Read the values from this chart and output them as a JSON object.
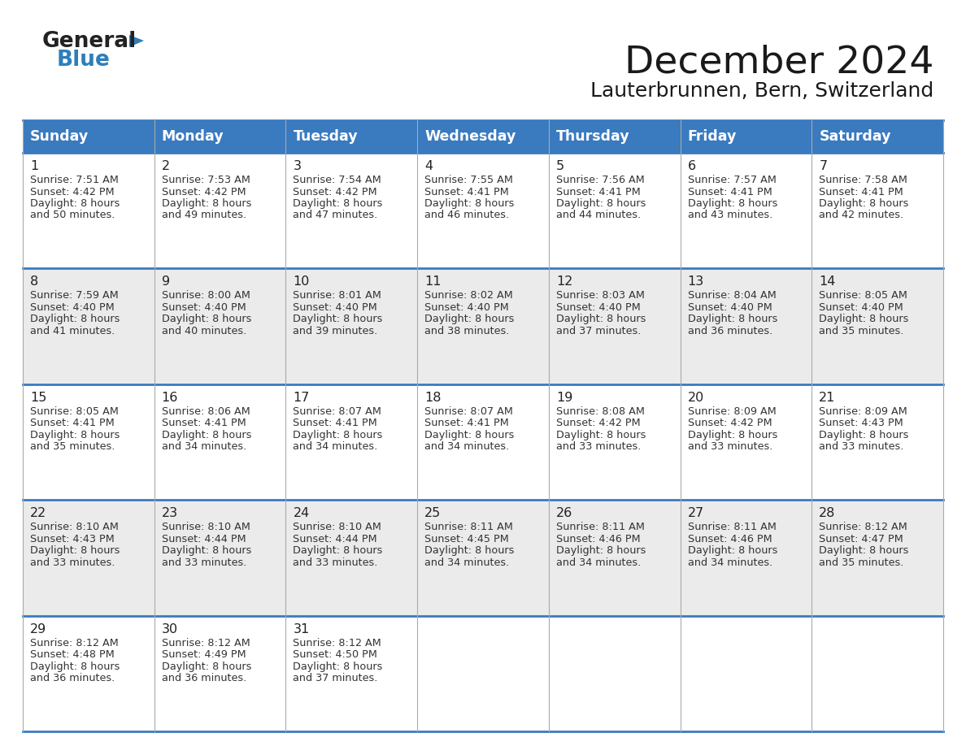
{
  "title": "December 2024",
  "subtitle": "Lauterbrunnen, Bern, Switzerland",
  "header_color": "#3a7abf",
  "header_text_color": "#ffffff",
  "cell_bg_white": "#ffffff",
  "cell_bg_gray": "#ebebeb",
  "border_color": "#3a7abf",
  "inner_line_color": "#cccccc",
  "day_names": [
    "Sunday",
    "Monday",
    "Tuesday",
    "Wednesday",
    "Thursday",
    "Friday",
    "Saturday"
  ],
  "calendar": [
    [
      {
        "day": "1",
        "sunrise": "7:51 AM",
        "sunset": "4:42 PM",
        "minutes": "50 minutes."
      },
      {
        "day": "2",
        "sunrise": "7:53 AM",
        "sunset": "4:42 PM",
        "minutes": "49 minutes."
      },
      {
        "day": "3",
        "sunrise": "7:54 AM",
        "sunset": "4:42 PM",
        "minutes": "47 minutes."
      },
      {
        "day": "4",
        "sunrise": "7:55 AM",
        "sunset": "4:41 PM",
        "minutes": "46 minutes."
      },
      {
        "day": "5",
        "sunrise": "7:56 AM",
        "sunset": "4:41 PM",
        "minutes": "44 minutes."
      },
      {
        "day": "6",
        "sunrise": "7:57 AM",
        "sunset": "4:41 PM",
        "minutes": "43 minutes."
      },
      {
        "day": "7",
        "sunrise": "7:58 AM",
        "sunset": "4:41 PM",
        "minutes": "42 minutes."
      }
    ],
    [
      {
        "day": "8",
        "sunrise": "7:59 AM",
        "sunset": "4:40 PM",
        "minutes": "41 minutes."
      },
      {
        "day": "9",
        "sunrise": "8:00 AM",
        "sunset": "4:40 PM",
        "minutes": "40 minutes."
      },
      {
        "day": "10",
        "sunrise": "8:01 AM",
        "sunset": "4:40 PM",
        "minutes": "39 minutes."
      },
      {
        "day": "11",
        "sunrise": "8:02 AM",
        "sunset": "4:40 PM",
        "minutes": "38 minutes."
      },
      {
        "day": "12",
        "sunrise": "8:03 AM",
        "sunset": "4:40 PM",
        "minutes": "37 minutes."
      },
      {
        "day": "13",
        "sunrise": "8:04 AM",
        "sunset": "4:40 PM",
        "minutes": "36 minutes."
      },
      {
        "day": "14",
        "sunrise": "8:05 AM",
        "sunset": "4:40 PM",
        "minutes": "35 minutes."
      }
    ],
    [
      {
        "day": "15",
        "sunrise": "8:05 AM",
        "sunset": "4:41 PM",
        "minutes": "35 minutes."
      },
      {
        "day": "16",
        "sunrise": "8:06 AM",
        "sunset": "4:41 PM",
        "minutes": "34 minutes."
      },
      {
        "day": "17",
        "sunrise": "8:07 AM",
        "sunset": "4:41 PM",
        "minutes": "34 minutes."
      },
      {
        "day": "18",
        "sunrise": "8:07 AM",
        "sunset": "4:41 PM",
        "minutes": "34 minutes."
      },
      {
        "day": "19",
        "sunrise": "8:08 AM",
        "sunset": "4:42 PM",
        "minutes": "33 minutes."
      },
      {
        "day": "20",
        "sunrise": "8:09 AM",
        "sunset": "4:42 PM",
        "minutes": "33 minutes."
      },
      {
        "day": "21",
        "sunrise": "8:09 AM",
        "sunset": "4:43 PM",
        "minutes": "33 minutes."
      }
    ],
    [
      {
        "day": "22",
        "sunrise": "8:10 AM",
        "sunset": "4:43 PM",
        "minutes": "33 minutes."
      },
      {
        "day": "23",
        "sunrise": "8:10 AM",
        "sunset": "4:44 PM",
        "minutes": "33 minutes."
      },
      {
        "day": "24",
        "sunrise": "8:10 AM",
        "sunset": "4:44 PM",
        "minutes": "33 minutes."
      },
      {
        "day": "25",
        "sunrise": "8:11 AM",
        "sunset": "4:45 PM",
        "minutes": "34 minutes."
      },
      {
        "day": "26",
        "sunrise": "8:11 AM",
        "sunset": "4:46 PM",
        "minutes": "34 minutes."
      },
      {
        "day": "27",
        "sunrise": "8:11 AM",
        "sunset": "4:46 PM",
        "minutes": "34 minutes."
      },
      {
        "day": "28",
        "sunrise": "8:12 AM",
        "sunset": "4:47 PM",
        "minutes": "35 minutes."
      }
    ],
    [
      {
        "day": "29",
        "sunrise": "8:12 AM",
        "sunset": "4:48 PM",
        "minutes": "36 minutes."
      },
      {
        "day": "30",
        "sunrise": "8:12 AM",
        "sunset": "4:49 PM",
        "minutes": "36 minutes."
      },
      {
        "day": "31",
        "sunrise": "8:12 AM",
        "sunset": "4:50 PM",
        "minutes": "37 minutes."
      },
      null,
      null,
      null,
      null
    ]
  ]
}
